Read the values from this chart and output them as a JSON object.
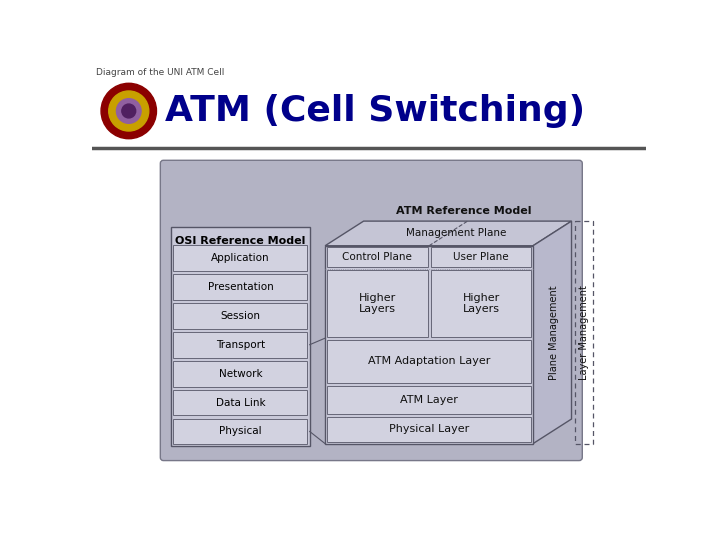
{
  "title": "ATM (Cell Switching)",
  "subtitle": "Diagram of the UNI ATM Cell",
  "bg_color": "#ffffff",
  "diagram_bg": "#b3b3c4",
  "box_fill": "#c8c8d8",
  "box_inner": "#d2d2e0",
  "box_edge": "#555566",
  "title_color": "#00008B",
  "text_color": "#111111",
  "osi_layers": [
    "Application",
    "Presentation",
    "Session",
    "Transport",
    "Network",
    "Data Link",
    "Physical"
  ],
  "top_label": "Management Plane",
  "atm_ref_label": "ATM Reference Model",
  "osi_ref_label": "OSI Reference Model",
  "plane_mgmt_label": "Plane Management",
  "layer_mgmt_label": "Layer Management",
  "control_plane_label": "Control Plane",
  "user_plane_label": "User Plane",
  "higher_layers": "Higher\nLayers",
  "aal_label": "ATM Adaptation Layer",
  "atm_layer_label": "ATM Layer",
  "phys_layer_label": "Physical Layer"
}
